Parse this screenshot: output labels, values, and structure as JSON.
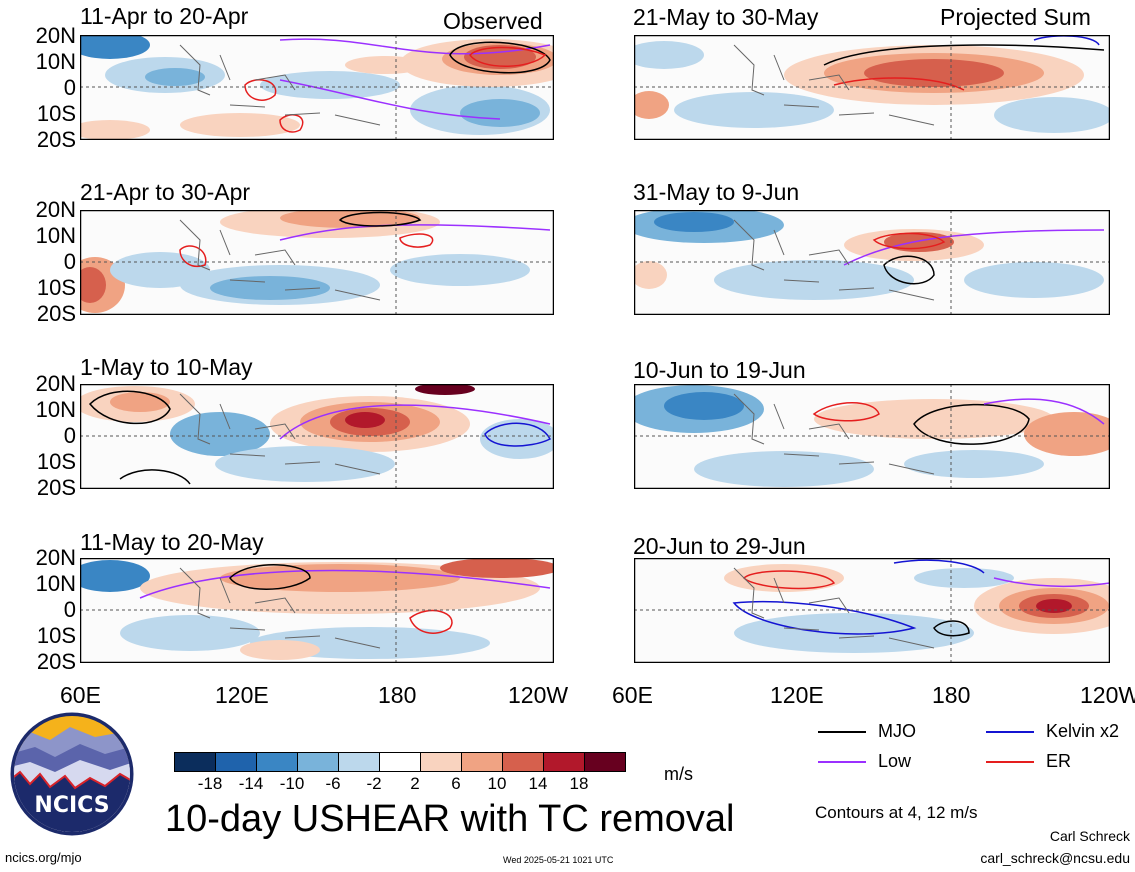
{
  "title": "10-day USHEAR with TC removal",
  "tags": {
    "observed": "Observed",
    "projected": "Projected Sum"
  },
  "panels": [
    {
      "title": "11-Apr to 20-Apr",
      "col": 0,
      "row": 0
    },
    {
      "title": "21-Apr to 30-Apr",
      "col": 0,
      "row": 1
    },
    {
      "title": "1-May to 10-May",
      "col": 0,
      "row": 2
    },
    {
      "title": "11-May to 20-May",
      "col": 0,
      "row": 3
    },
    {
      "title": "21-May to 30-May",
      "col": 1,
      "row": 0
    },
    {
      "title": "31-May to 9-Jun",
      "col": 1,
      "row": 1
    },
    {
      "title": "10-Jun to 19-Jun",
      "col": 1,
      "row": 2
    },
    {
      "title": "20-Jun to 29-Jun",
      "col": 1,
      "row": 3
    }
  ],
  "lat_labels": [
    "20N",
    "10N",
    "0",
    "10S",
    "20S"
  ],
  "lon_labels": [
    "60E",
    "120E",
    "180",
    "120W"
  ],
  "colorbar": {
    "ticks": [
      "-18",
      "-14",
      "-10",
      "-6",
      "-2",
      "2",
      "6",
      "10",
      "14",
      "18"
    ],
    "units": "m/s",
    "colors": [
      "#0b2d5c",
      "#1f63ac",
      "#3a86c4",
      "#79b3da",
      "#bcd8ec",
      "#ffffff",
      "#f9d3bf",
      "#f0a383",
      "#d6604d",
      "#b2182b",
      "#67001f"
    ]
  },
  "legend": {
    "items": [
      {
        "label": "MJO",
        "color": "#000000"
      },
      {
        "label": "Kelvin x2",
        "color": "#1414d2"
      },
      {
        "label": "Low",
        "color": "#9b30ff"
      },
      {
        "label": "ER",
        "color": "#e51e1e"
      }
    ],
    "contours_note": "Contours at 4, 12 m/s"
  },
  "logo": {
    "text": "NCICS"
  },
  "footer": {
    "left": "ncics.org/mjo",
    "center": "Wed 2025-05-21 1021 UTC",
    "author": "Carl Schreck",
    "email": "carl_schreck@ncsu.edu"
  }
}
